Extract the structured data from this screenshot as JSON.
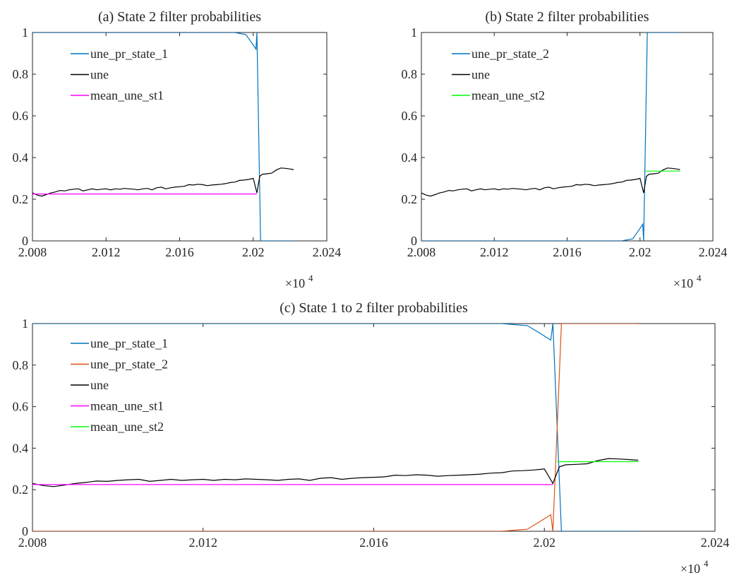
{
  "chart_data": [
    {
      "type": "line",
      "title": "(a) State 2 filter probabilities",
      "xlim": [
        2008,
        2024
      ],
      "ylim": [
        0,
        1
      ],
      "x_ticks": [
        2008,
        2012,
        2016,
        2020,
        2024
      ],
      "x_tick_labels": [
        "2.008",
        "2.012",
        "2.016",
        "2.02",
        "2.024"
      ],
      "x_exponent_label": "×10",
      "x_exponent_power": "4",
      "y_ticks": [
        0,
        0.2,
        0.4,
        0.6,
        0.8,
        1
      ],
      "y_tick_labels": [
        "0",
        "0.2",
        "0.4",
        "0.6",
        "0.8",
        "1"
      ],
      "legend_position": "top-left",
      "series": [
        {
          "name": "une_pr_state_1",
          "color": "#0072bd",
          "points": [
            [
              2008,
              1
            ],
            [
              2019.0,
              1
            ],
            [
              2019.3,
              0.995
            ],
            [
              2019.6,
              0.99
            ],
            [
              2020.0,
              0.94
            ],
            [
              2020.15,
              0.92
            ],
            [
              2020.2,
              1.0
            ],
            [
              2020.3,
              0.5
            ],
            [
              2020.4,
              0.0
            ],
            [
              2022.2,
              0.0
            ]
          ]
        },
        {
          "name": "une",
          "color": "#000000",
          "points": [
            [
              2008.0,
              0.23
            ],
            [
              2008.25,
              0.22
            ],
            [
              2008.5,
              0.215
            ],
            [
              2008.75,
              0.222
            ],
            [
              2009.0,
              0.23
            ],
            [
              2009.25,
              0.235
            ],
            [
              2009.5,
              0.242
            ],
            [
              2009.75,
              0.24
            ],
            [
              2010.0,
              0.245
            ],
            [
              2010.25,
              0.248
            ],
            [
              2010.5,
              0.25
            ],
            [
              2010.75,
              0.24
            ],
            [
              2011.0,
              0.245
            ],
            [
              2011.25,
              0.25
            ],
            [
              2011.5,
              0.245
            ],
            [
              2011.75,
              0.248
            ],
            [
              2012.0,
              0.25
            ],
            [
              2012.25,
              0.245
            ],
            [
              2012.5,
              0.25
            ],
            [
              2012.75,
              0.248
            ],
            [
              2013.0,
              0.252
            ],
            [
              2013.25,
              0.25
            ],
            [
              2013.5,
              0.248
            ],
            [
              2013.75,
              0.245
            ],
            [
              2014.0,
              0.25
            ],
            [
              2014.25,
              0.252
            ],
            [
              2014.5,
              0.245
            ],
            [
              2014.75,
              0.255
            ],
            [
              2015.0,
              0.258
            ],
            [
              2015.25,
              0.25
            ],
            [
              2015.5,
              0.255
            ],
            [
              2015.75,
              0.258
            ],
            [
              2016.0,
              0.26
            ],
            [
              2016.25,
              0.262
            ],
            [
              2016.5,
              0.27
            ],
            [
              2016.75,
              0.268
            ],
            [
              2017.0,
              0.272
            ],
            [
              2017.25,
              0.27
            ],
            [
              2017.5,
              0.265
            ],
            [
              2017.75,
              0.268
            ],
            [
              2018.0,
              0.27
            ],
            [
              2018.25,
              0.272
            ],
            [
              2018.5,
              0.275
            ],
            [
              2018.75,
              0.28
            ],
            [
              2019.0,
              0.282
            ],
            [
              2019.25,
              0.29
            ],
            [
              2019.5,
              0.292
            ],
            [
              2019.75,
              0.295
            ],
            [
              2020.0,
              0.3
            ],
            [
              2020.2,
              0.23
            ],
            [
              2020.35,
              0.31
            ],
            [
              2020.5,
              0.32
            ],
            [
              2020.75,
              0.322
            ],
            [
              2021.0,
              0.325
            ],
            [
              2021.25,
              0.34
            ],
            [
              2021.5,
              0.35
            ],
            [
              2021.75,
              0.348
            ],
            [
              2022.0,
              0.345
            ],
            [
              2022.2,
              0.342
            ]
          ]
        },
        {
          "name": "mean_une_st1",
          "color": "#ff00ff",
          "points": [
            [
              2008,
              0.225
            ],
            [
              2020.2,
              0.225
            ]
          ]
        }
      ]
    },
    {
      "type": "line",
      "title": "(b) State 2 filter probabilities",
      "xlim": [
        2008,
        2024
      ],
      "ylim": [
        0,
        1
      ],
      "x_ticks": [
        2008,
        2012,
        2016,
        2020,
        2024
      ],
      "x_tick_labels": [
        "2.008",
        "2.012",
        "2.016",
        "2.02",
        "2.024"
      ],
      "x_exponent_label": "×10",
      "x_exponent_power": "4",
      "y_ticks": [
        0,
        0.2,
        0.4,
        0.6,
        0.8,
        1
      ],
      "y_tick_labels": [
        "0",
        "0.2",
        "0.4",
        "0.6",
        "0.8",
        "1"
      ],
      "legend_position": "top-left",
      "series": [
        {
          "name": "une_pr_state_2",
          "color": "#0072bd",
          "points": [
            [
              2008,
              0
            ],
            [
              2019.0,
              0
            ],
            [
              2019.3,
              0.005
            ],
            [
              2019.6,
              0.01
            ],
            [
              2020.0,
              0.06
            ],
            [
              2020.15,
              0.08
            ],
            [
              2020.2,
              0.0
            ],
            [
              2020.3,
              0.5
            ],
            [
              2020.4,
              1.0
            ],
            [
              2022.2,
              1.0
            ]
          ]
        },
        {
          "name": "une",
          "color": "#000000",
          "points": [
            [
              2008.0,
              0.23
            ],
            [
              2008.25,
              0.22
            ],
            [
              2008.5,
              0.215
            ],
            [
              2008.75,
              0.222
            ],
            [
              2009.0,
              0.23
            ],
            [
              2009.25,
              0.235
            ],
            [
              2009.5,
              0.242
            ],
            [
              2009.75,
              0.24
            ],
            [
              2010.0,
              0.245
            ],
            [
              2010.25,
              0.248
            ],
            [
              2010.5,
              0.25
            ],
            [
              2010.75,
              0.24
            ],
            [
              2011.0,
              0.245
            ],
            [
              2011.25,
              0.25
            ],
            [
              2011.5,
              0.245
            ],
            [
              2011.75,
              0.248
            ],
            [
              2012.0,
              0.25
            ],
            [
              2012.25,
              0.245
            ],
            [
              2012.5,
              0.25
            ],
            [
              2012.75,
              0.248
            ],
            [
              2013.0,
              0.252
            ],
            [
              2013.25,
              0.25
            ],
            [
              2013.5,
              0.248
            ],
            [
              2013.75,
              0.245
            ],
            [
              2014.0,
              0.25
            ],
            [
              2014.25,
              0.252
            ],
            [
              2014.5,
              0.245
            ],
            [
              2014.75,
              0.255
            ],
            [
              2015.0,
              0.258
            ],
            [
              2015.25,
              0.25
            ],
            [
              2015.5,
              0.255
            ],
            [
              2015.75,
              0.258
            ],
            [
              2016.0,
              0.26
            ],
            [
              2016.25,
              0.262
            ],
            [
              2016.5,
              0.27
            ],
            [
              2016.75,
              0.268
            ],
            [
              2017.0,
              0.272
            ],
            [
              2017.25,
              0.27
            ],
            [
              2017.5,
              0.265
            ],
            [
              2017.75,
              0.268
            ],
            [
              2018.0,
              0.27
            ],
            [
              2018.25,
              0.272
            ],
            [
              2018.5,
              0.275
            ],
            [
              2018.75,
              0.28
            ],
            [
              2019.0,
              0.282
            ],
            [
              2019.25,
              0.29
            ],
            [
              2019.5,
              0.292
            ],
            [
              2019.75,
              0.295
            ],
            [
              2020.0,
              0.3
            ],
            [
              2020.2,
              0.23
            ],
            [
              2020.35,
              0.31
            ],
            [
              2020.5,
              0.32
            ],
            [
              2020.75,
              0.322
            ],
            [
              2021.0,
              0.325
            ],
            [
              2021.25,
              0.34
            ],
            [
              2021.5,
              0.35
            ],
            [
              2021.75,
              0.348
            ],
            [
              2022.0,
              0.345
            ],
            [
              2022.2,
              0.342
            ]
          ]
        },
        {
          "name": "mean_une_st2",
          "color": "#00ff00",
          "points": [
            [
              2020.3,
              0.335
            ],
            [
              2022.2,
              0.335
            ]
          ]
        }
      ]
    },
    {
      "type": "line",
      "title": "(c) State 1 to 2 filter probabilities",
      "xlim": [
        2008,
        2024
      ],
      "ylim": [
        0,
        1
      ],
      "x_ticks": [
        2008,
        2012,
        2016,
        2020,
        2024
      ],
      "x_tick_labels": [
        "2.008",
        "2.012",
        "2.016",
        "2.02",
        "2.024"
      ],
      "x_exponent_label": "×10",
      "x_exponent_power": "4",
      "y_ticks": [
        0,
        0.2,
        0.4,
        0.6,
        0.8,
        1
      ],
      "y_tick_labels": [
        "0",
        "0.2",
        "0.4",
        "0.6",
        "0.8",
        "1"
      ],
      "legend_position": "top-left",
      "series": [
        {
          "name": "une_pr_state_1",
          "color": "#0072bd",
          "points": [
            [
              2008,
              1
            ],
            [
              2019.0,
              1
            ],
            [
              2019.3,
              0.995
            ],
            [
              2019.6,
              0.99
            ],
            [
              2020.0,
              0.94
            ],
            [
              2020.15,
              0.92
            ],
            [
              2020.2,
              1.0
            ],
            [
              2020.3,
              0.5
            ],
            [
              2020.4,
              0.0
            ],
            [
              2022.2,
              0.0
            ]
          ]
        },
        {
          "name": "une_pr_state_2",
          "color": "#d95319",
          "points": [
            [
              2008,
              0
            ],
            [
              2019.0,
              0
            ],
            [
              2019.3,
              0.005
            ],
            [
              2019.6,
              0.01
            ],
            [
              2020.0,
              0.06
            ],
            [
              2020.15,
              0.08
            ],
            [
              2020.2,
              0.0
            ],
            [
              2020.3,
              0.5
            ],
            [
              2020.4,
              1.0
            ],
            [
              2022.2,
              1.0
            ]
          ]
        },
        {
          "name": "une",
          "color": "#000000",
          "points": [
            [
              2008.0,
              0.23
            ],
            [
              2008.25,
              0.22
            ],
            [
              2008.5,
              0.215
            ],
            [
              2008.75,
              0.222
            ],
            [
              2009.0,
              0.23
            ],
            [
              2009.25,
              0.235
            ],
            [
              2009.5,
              0.242
            ],
            [
              2009.75,
              0.24
            ],
            [
              2010.0,
              0.245
            ],
            [
              2010.25,
              0.248
            ],
            [
              2010.5,
              0.25
            ],
            [
              2010.75,
              0.24
            ],
            [
              2011.0,
              0.245
            ],
            [
              2011.25,
              0.25
            ],
            [
              2011.5,
              0.245
            ],
            [
              2011.75,
              0.248
            ],
            [
              2012.0,
              0.25
            ],
            [
              2012.25,
              0.245
            ],
            [
              2012.5,
              0.25
            ],
            [
              2012.75,
              0.248
            ],
            [
              2013.0,
              0.252
            ],
            [
              2013.25,
              0.25
            ],
            [
              2013.5,
              0.248
            ],
            [
              2013.75,
              0.245
            ],
            [
              2014.0,
              0.25
            ],
            [
              2014.25,
              0.252
            ],
            [
              2014.5,
              0.245
            ],
            [
              2014.75,
              0.255
            ],
            [
              2015.0,
              0.258
            ],
            [
              2015.25,
              0.25
            ],
            [
              2015.5,
              0.255
            ],
            [
              2015.75,
              0.258
            ],
            [
              2016.0,
              0.26
            ],
            [
              2016.25,
              0.262
            ],
            [
              2016.5,
              0.27
            ],
            [
              2016.75,
              0.268
            ],
            [
              2017.0,
              0.272
            ],
            [
              2017.25,
              0.27
            ],
            [
              2017.5,
              0.265
            ],
            [
              2017.75,
              0.268
            ],
            [
              2018.0,
              0.27
            ],
            [
              2018.25,
              0.272
            ],
            [
              2018.5,
              0.275
            ],
            [
              2018.75,
              0.28
            ],
            [
              2019.0,
              0.282
            ],
            [
              2019.25,
              0.29
            ],
            [
              2019.5,
              0.292
            ],
            [
              2019.75,
              0.295
            ],
            [
              2020.0,
              0.3
            ],
            [
              2020.2,
              0.23
            ],
            [
              2020.35,
              0.31
            ],
            [
              2020.5,
              0.32
            ],
            [
              2020.75,
              0.322
            ],
            [
              2021.0,
              0.325
            ],
            [
              2021.25,
              0.34
            ],
            [
              2021.5,
              0.35
            ],
            [
              2021.75,
              0.348
            ],
            [
              2022.0,
              0.345
            ],
            [
              2022.2,
              0.342
            ]
          ]
        },
        {
          "name": "mean_une_st1",
          "color": "#ff00ff",
          "points": [
            [
              2008,
              0.225
            ],
            [
              2020.2,
              0.225
            ]
          ]
        },
        {
          "name": "mean_une_st2",
          "color": "#00ff00",
          "points": [
            [
              2020.3,
              0.335
            ],
            [
              2022.2,
              0.335
            ]
          ]
        }
      ]
    }
  ]
}
